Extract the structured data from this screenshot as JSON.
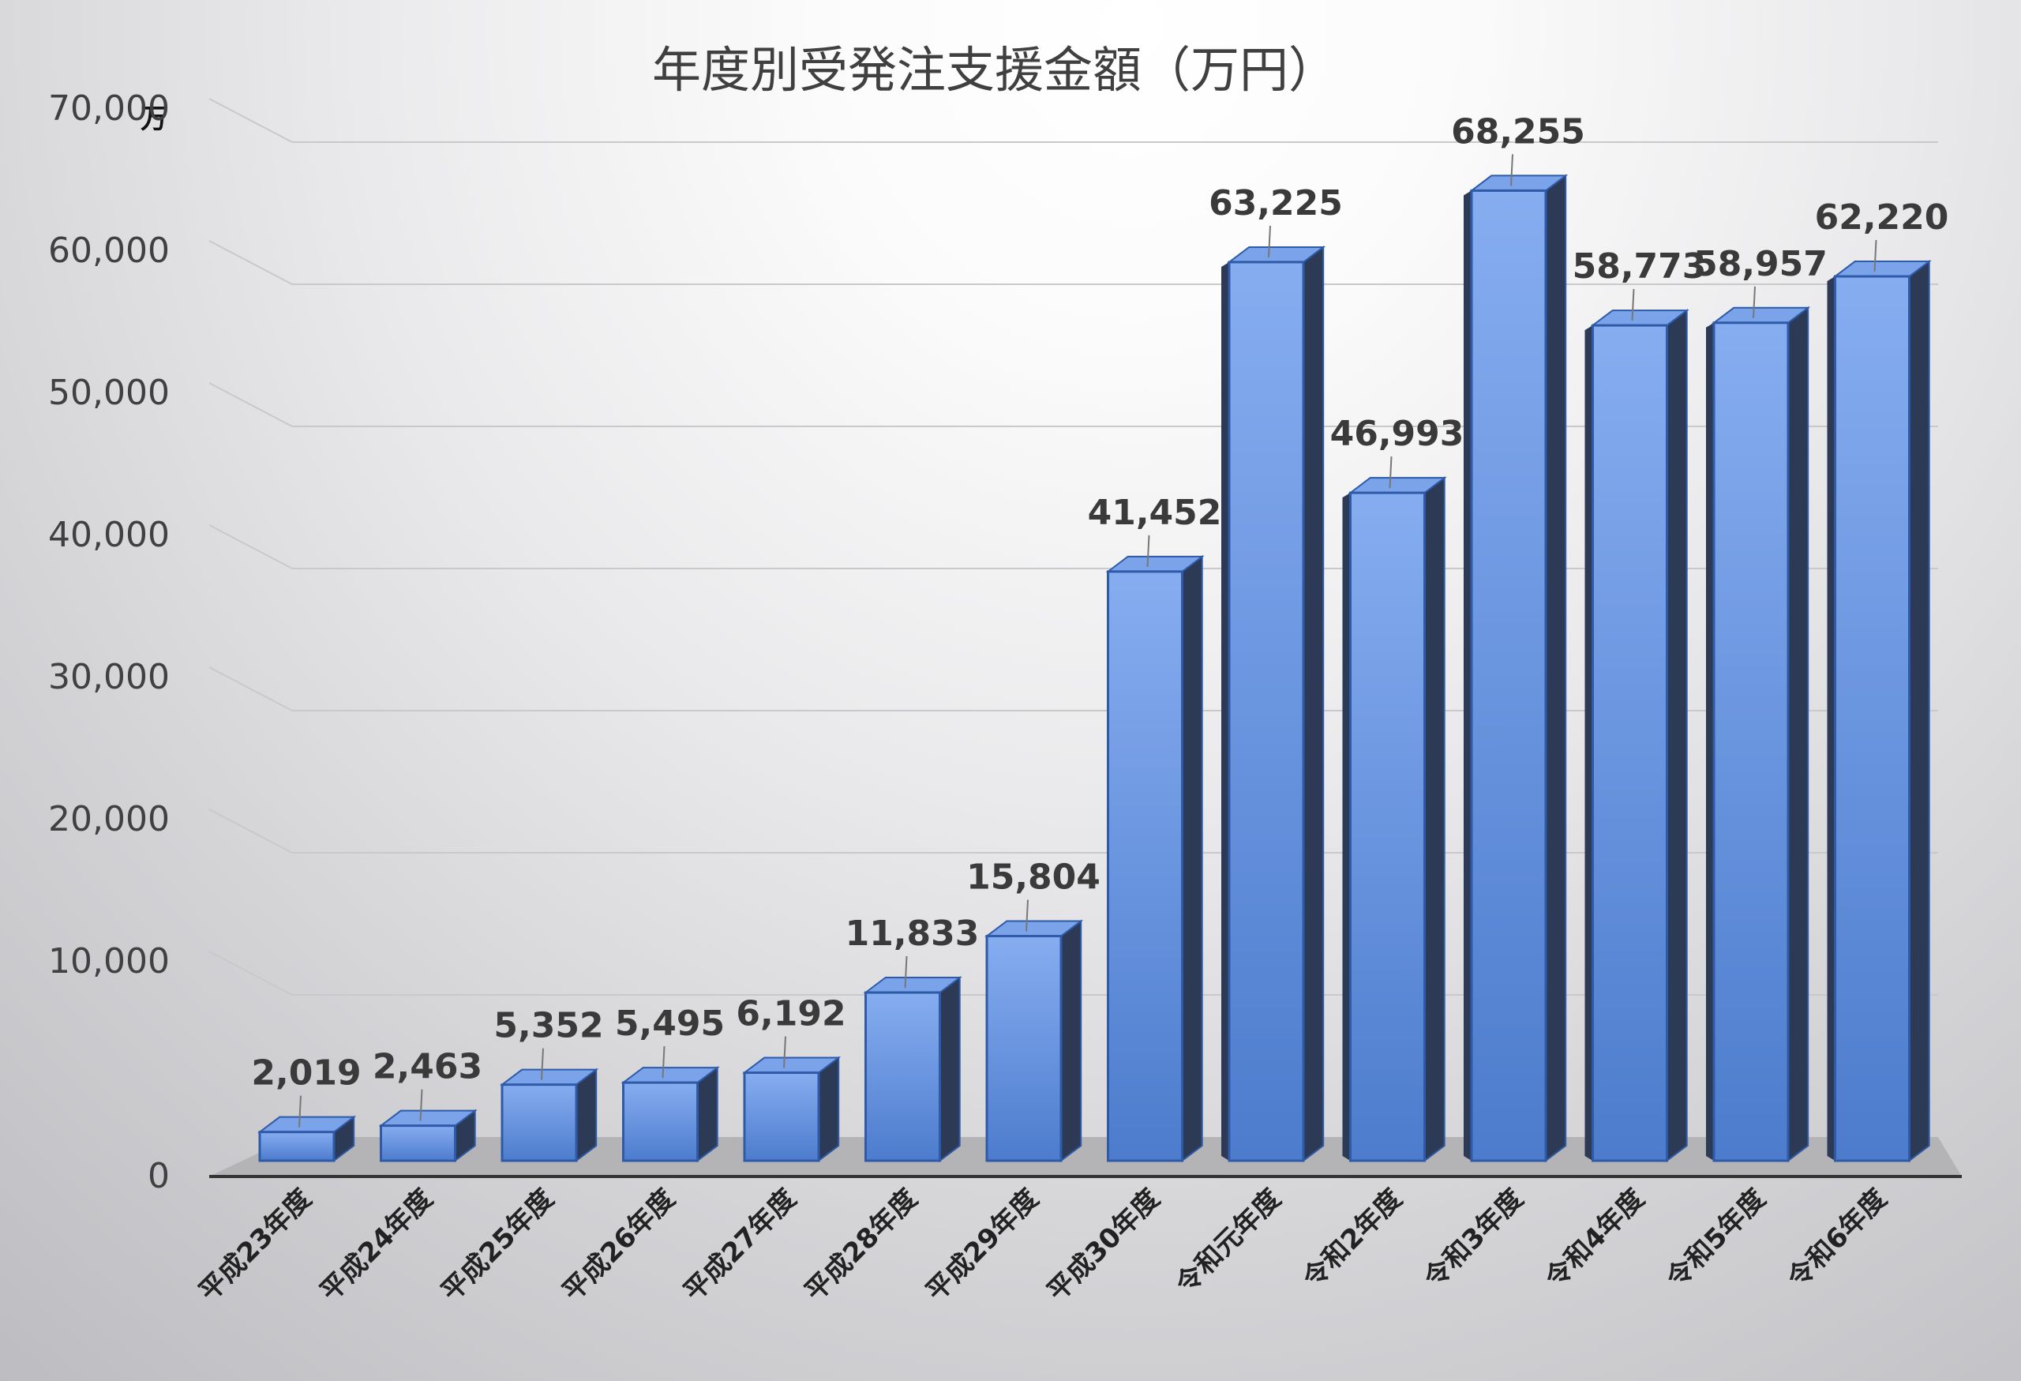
{
  "chart_data": {
    "type": "bar",
    "title": "年度別受発注支援金額（万円）",
    "unit_label": "万",
    "xlabel": "",
    "ylabel": "",
    "ylim": [
      0,
      70000
    ],
    "yticks": [
      0,
      10000,
      20000,
      30000,
      40000,
      50000,
      60000,
      70000
    ],
    "ytick_labels": [
      "0",
      "10,000",
      "20,000",
      "30,000",
      "40,000",
      "50,000",
      "60,000",
      "70,000"
    ],
    "grid": true,
    "legend": "none",
    "style": "3d-column",
    "categories": [
      "平成23年度",
      "平成24年度",
      "平成25年度",
      "平成26年度",
      "平成27年度",
      "平成28年度",
      "平成29年度",
      "平成30年度",
      "令和元年度",
      "令和2年度",
      "令和3年度",
      "令和4年度",
      "令和5年度",
      "令和6年度"
    ],
    "values": [
      2019,
      2463,
      5352,
      5495,
      6192,
      11833,
      15804,
      41452,
      63225,
      46993,
      68255,
      58773,
      58957,
      62220
    ],
    "data_labels": [
      "2,019",
      "2,463",
      "5,352",
      "5,495",
      "6,192",
      "11,833",
      "15,804",
      "41,452",
      "63,225",
      "46,993",
      "68,255",
      "58,773",
      "58,957",
      "62,220"
    ]
  },
  "colors": {
    "bar_front": "#5b8bd9",
    "bar_edge": "#2e5aa8",
    "bar_side": "#2d3a55",
    "bar_top": "#7aa3ea",
    "floor": "#b4b4b6",
    "grid": "#c9c9cc",
    "axis": "#333333"
  }
}
